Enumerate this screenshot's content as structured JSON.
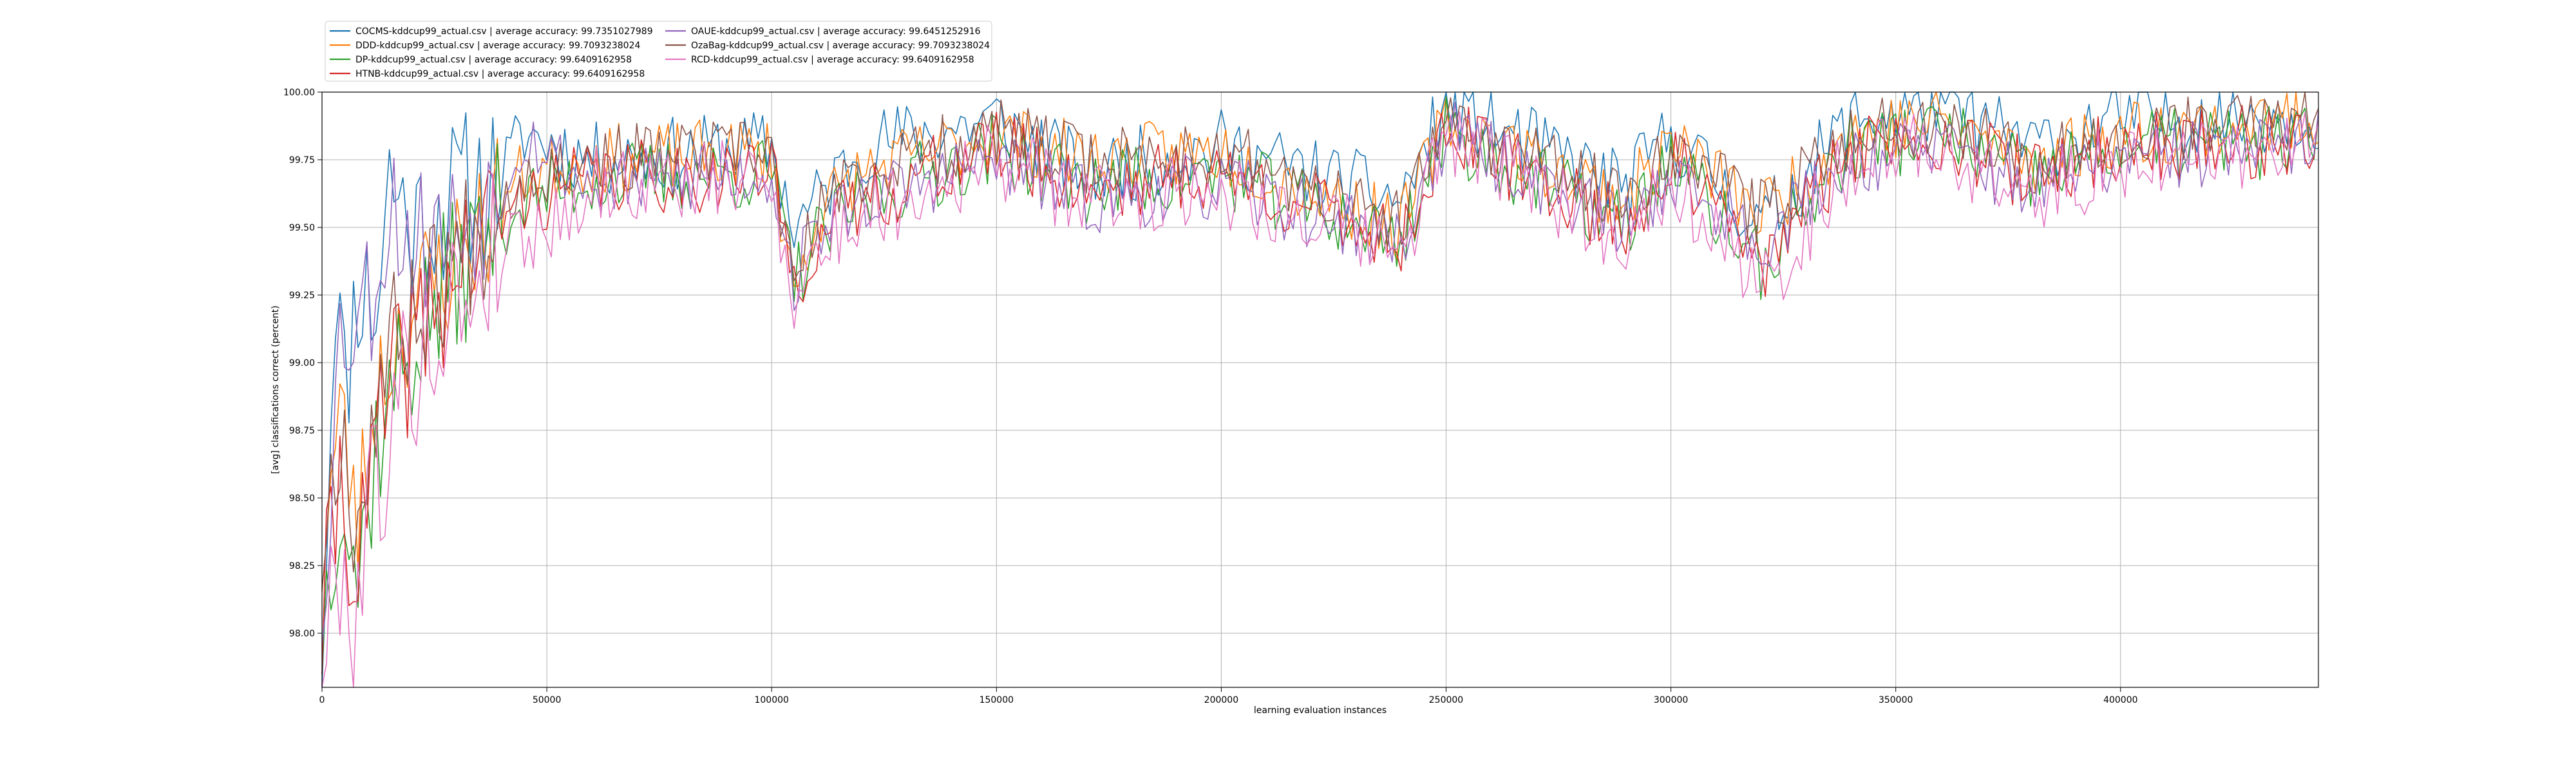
{
  "chart_data": {
    "type": "line",
    "title": "",
    "xlabel": "learning evaluation instances",
    "ylabel": "[avg] classifications correct (percent)",
    "xlim": [
      0,
      444000
    ],
    "ylim": [
      97.8,
      100.0
    ],
    "xticks": [
      0,
      50000,
      100000,
      150000,
      200000,
      250000,
      300000,
      350000,
      400000
    ],
    "xtick_labels": [
      "0",
      "50000",
      "100000",
      "150000",
      "200000",
      "250000",
      "300000",
      "350000",
      "400000"
    ],
    "yticks": [
      98.0,
      98.25,
      98.5,
      98.75,
      99.0,
      99.25,
      99.5,
      99.75,
      100.0
    ],
    "ytick_labels": [
      "98.00",
      "98.25",
      "98.50",
      "98.75",
      "99.00",
      "99.25",
      "99.50",
      "99.75",
      "100.00"
    ],
    "grid": true,
    "legend_position": "top-left-outside",
    "x_step": 1000,
    "series": [
      {
        "name": "COCMS-kddcup99_actual.csv | average accuracy: 99.7351027989",
        "color": "#1f77b4",
        "keypoints": [
          [
            0,
            97.9
          ],
          [
            3000,
            99.35
          ],
          [
            5000,
            98.9
          ],
          [
            8000,
            99.3
          ],
          [
            12000,
            99.2
          ],
          [
            15000,
            99.7
          ],
          [
            20000,
            99.5
          ],
          [
            30000,
            99.62
          ],
          [
            40000,
            99.7
          ],
          [
            45000,
            99.85
          ],
          [
            60000,
            99.75
          ],
          [
            100000,
            99.8
          ],
          [
            105000,
            99.5
          ],
          [
            110000,
            99.6
          ],
          [
            120000,
            99.8
          ],
          [
            150000,
            99.9
          ],
          [
            170000,
            99.7
          ],
          [
            200000,
            99.8
          ],
          [
            240000,
            99.6
          ],
          [
            250000,
            99.95
          ],
          [
            290000,
            99.65
          ],
          [
            300000,
            99.85
          ],
          [
            320000,
            99.5
          ],
          [
            340000,
            99.9
          ],
          [
            360000,
            99.95
          ],
          [
            380000,
            99.8
          ],
          [
            400000,
            99.9
          ],
          [
            444000,
            99.92
          ]
        ],
        "noise": 0.14,
        "seed": 11
      },
      {
        "name": "DDD-kddcup99_actual.csv | average accuracy: 99.7093238024",
        "color": "#ff7f0e",
        "keypoints": [
          [
            0,
            98.3
          ],
          [
            4000,
            98.8
          ],
          [
            8000,
            98.4
          ],
          [
            12000,
            98.9
          ],
          [
            18000,
            99.15
          ],
          [
            25000,
            99.3
          ],
          [
            35000,
            99.5
          ],
          [
            45000,
            99.7
          ],
          [
            60000,
            99.75
          ],
          [
            100000,
            99.78
          ],
          [
            105000,
            99.25
          ],
          [
            110000,
            99.55
          ],
          [
            120000,
            99.7
          ],
          [
            150000,
            99.85
          ],
          [
            170000,
            99.75
          ],
          [
            200000,
            99.78
          ],
          [
            240000,
            99.5
          ],
          [
            250000,
            99.9
          ],
          [
            290000,
            99.6
          ],
          [
            300000,
            99.82
          ],
          [
            320000,
            99.55
          ],
          [
            340000,
            99.85
          ],
          [
            360000,
            99.9
          ],
          [
            380000,
            99.75
          ],
          [
            400000,
            99.85
          ],
          [
            444000,
            99.9
          ]
        ],
        "noise": 0.13,
        "seed": 23
      },
      {
        "name": "DP-kddcup99_actual.csv | average accuracy: 99.6409162958",
        "color": "#2ca02c",
        "keypoints": [
          [
            0,
            98.0
          ],
          [
            4000,
            98.6
          ],
          [
            8000,
            98.2
          ],
          [
            12000,
            98.7
          ],
          [
            18000,
            99.0
          ],
          [
            25000,
            99.2
          ],
          [
            35000,
            99.45
          ],
          [
            45000,
            99.6
          ],
          [
            60000,
            99.68
          ],
          [
            100000,
            99.7
          ],
          [
            105000,
            99.3
          ],
          [
            110000,
            99.45
          ],
          [
            120000,
            99.6
          ],
          [
            150000,
            99.8
          ],
          [
            170000,
            99.65
          ],
          [
            200000,
            99.7
          ],
          [
            240000,
            99.45
          ],
          [
            250000,
            99.85
          ],
          [
            290000,
            99.5
          ],
          [
            300000,
            99.75
          ],
          [
            320000,
            99.35
          ],
          [
            340000,
            99.8
          ],
          [
            360000,
            99.85
          ],
          [
            380000,
            99.68
          ],
          [
            400000,
            99.8
          ],
          [
            444000,
            99.82
          ]
        ],
        "noise": 0.14,
        "seed": 37
      },
      {
        "name": "HTNB-kddcup99_actual.csv | average accuracy: 99.6409162958",
        "color": "#d62728",
        "keypoints": [
          [
            0,
            98.0
          ],
          [
            4000,
            98.6
          ],
          [
            8000,
            98.2
          ],
          [
            12000,
            98.7
          ],
          [
            18000,
            99.0
          ],
          [
            25000,
            99.2
          ],
          [
            35000,
            99.45
          ],
          [
            45000,
            99.6
          ],
          [
            60000,
            99.68
          ],
          [
            100000,
            99.7
          ],
          [
            105000,
            99.3
          ],
          [
            110000,
            99.45
          ],
          [
            120000,
            99.6
          ],
          [
            150000,
            99.8
          ],
          [
            170000,
            99.65
          ],
          [
            200000,
            99.7
          ],
          [
            240000,
            99.45
          ],
          [
            250000,
            99.85
          ],
          [
            290000,
            99.5
          ],
          [
            300000,
            99.75
          ],
          [
            320000,
            99.35
          ],
          [
            340000,
            99.8
          ],
          [
            360000,
            99.85
          ],
          [
            380000,
            99.68
          ],
          [
            400000,
            99.8
          ],
          [
            444000,
            99.82
          ]
        ],
        "noise": 0.14,
        "seed": 41
      },
      {
        "name": "OAUE-kddcup99_actual.csv | average accuracy: 99.6451252916",
        "color": "#9467bd",
        "keypoints": [
          [
            0,
            98.1
          ],
          [
            4000,
            99.1
          ],
          [
            8000,
            99.2
          ],
          [
            12000,
            99.3
          ],
          [
            15000,
            99.6
          ],
          [
            20000,
            99.45
          ],
          [
            30000,
            99.5
          ],
          [
            40000,
            99.65
          ],
          [
            45000,
            99.85
          ],
          [
            60000,
            99.65
          ],
          [
            100000,
            99.7
          ],
          [
            105000,
            99.3
          ],
          [
            110000,
            99.5
          ],
          [
            120000,
            99.6
          ],
          [
            150000,
            99.75
          ],
          [
            170000,
            99.6
          ],
          [
            200000,
            99.65
          ],
          [
            240000,
            99.45
          ],
          [
            250000,
            99.85
          ],
          [
            290000,
            99.5
          ],
          [
            300000,
            99.7
          ],
          [
            320000,
            99.45
          ],
          [
            340000,
            99.75
          ],
          [
            360000,
            99.8
          ],
          [
            380000,
            99.65
          ],
          [
            400000,
            99.75
          ],
          [
            444000,
            99.8
          ]
        ],
        "noise": 0.13,
        "seed": 53
      },
      {
        "name": "OzaBag-kddcup99_actual.csv | average accuracy: 99.7093238024",
        "color": "#8c564b",
        "keypoints": [
          [
            0,
            98.3
          ],
          [
            4000,
            98.8
          ],
          [
            8000,
            98.4
          ],
          [
            12000,
            98.9
          ],
          [
            18000,
            99.15
          ],
          [
            25000,
            99.3
          ],
          [
            35000,
            99.5
          ],
          [
            45000,
            99.7
          ],
          [
            60000,
            99.75
          ],
          [
            100000,
            99.78
          ],
          [
            105000,
            99.25
          ],
          [
            110000,
            99.55
          ],
          [
            120000,
            99.7
          ],
          [
            150000,
            99.85
          ],
          [
            170000,
            99.75
          ],
          [
            200000,
            99.78
          ],
          [
            240000,
            99.5
          ],
          [
            250000,
            99.9
          ],
          [
            290000,
            99.6
          ],
          [
            300000,
            99.82
          ],
          [
            320000,
            99.55
          ],
          [
            340000,
            99.85
          ],
          [
            360000,
            99.9
          ],
          [
            380000,
            99.75
          ],
          [
            400000,
            99.85
          ],
          [
            444000,
            99.9
          ]
        ],
        "noise": 0.13,
        "seed": 67
      },
      {
        "name": "RCD-kddcup99_actual.csv | average accuracy: 99.6409162958",
        "color": "#e377c2",
        "keypoints": [
          [
            0,
            97.8
          ],
          [
            4000,
            98.3
          ],
          [
            7000,
            97.95
          ],
          [
            10000,
            98.5
          ],
          [
            15000,
            98.7
          ],
          [
            20000,
            99.0
          ],
          [
            30000,
            99.2
          ],
          [
            40000,
            99.45
          ],
          [
            50000,
            99.5
          ],
          [
            60000,
            99.65
          ],
          [
            100000,
            99.68
          ],
          [
            105000,
            99.25
          ],
          [
            110000,
            99.4
          ],
          [
            120000,
            99.55
          ],
          [
            150000,
            99.75
          ],
          [
            170000,
            99.6
          ],
          [
            200000,
            99.65
          ],
          [
            240000,
            99.4
          ],
          [
            250000,
            99.85
          ],
          [
            290000,
            99.45
          ],
          [
            300000,
            99.7
          ],
          [
            320000,
            99.25
          ],
          [
            340000,
            99.75
          ],
          [
            360000,
            99.8
          ],
          [
            380000,
            99.6
          ],
          [
            400000,
            99.75
          ],
          [
            444000,
            99.8
          ]
        ],
        "noise": 0.15,
        "seed": 79
      }
    ]
  }
}
